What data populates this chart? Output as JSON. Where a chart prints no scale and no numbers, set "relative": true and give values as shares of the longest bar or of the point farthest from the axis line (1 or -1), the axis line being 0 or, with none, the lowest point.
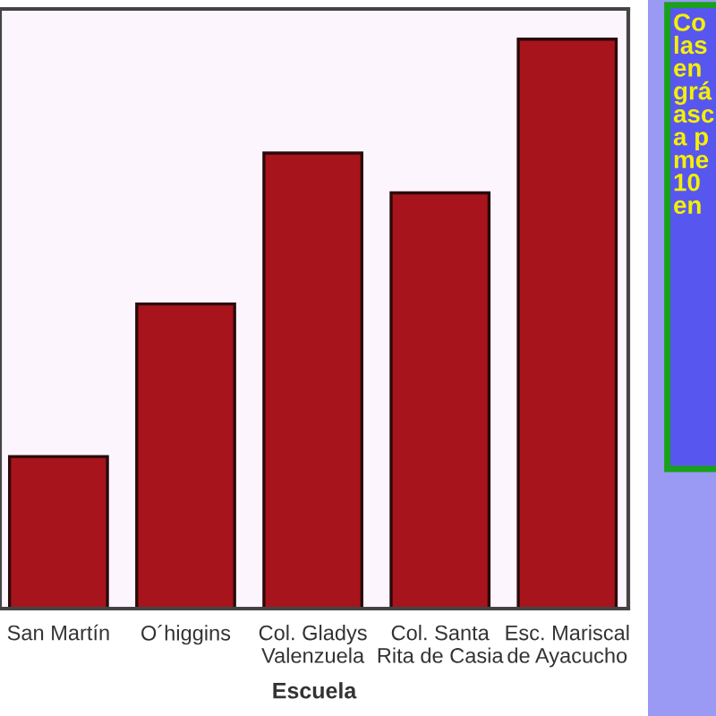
{
  "chart_data": {
    "type": "bar",
    "relative": true,
    "xlabel": "Escuela",
    "categories": [
      "San Martín",
      "O´higgins",
      "Col. Gladys\nValenzuela",
      "Col. Santa\nRita de Casia",
      "Esc. Mariscal\nde Ayacucho"
    ],
    "values": [
      0.267,
      0.535,
      0.8,
      0.73,
      1
    ],
    "color": "#a8141c",
    "annotations": [
      "Co\nlas\nen\ngrá\nasc\na p\nme\n10\nen"
    ]
  }
}
